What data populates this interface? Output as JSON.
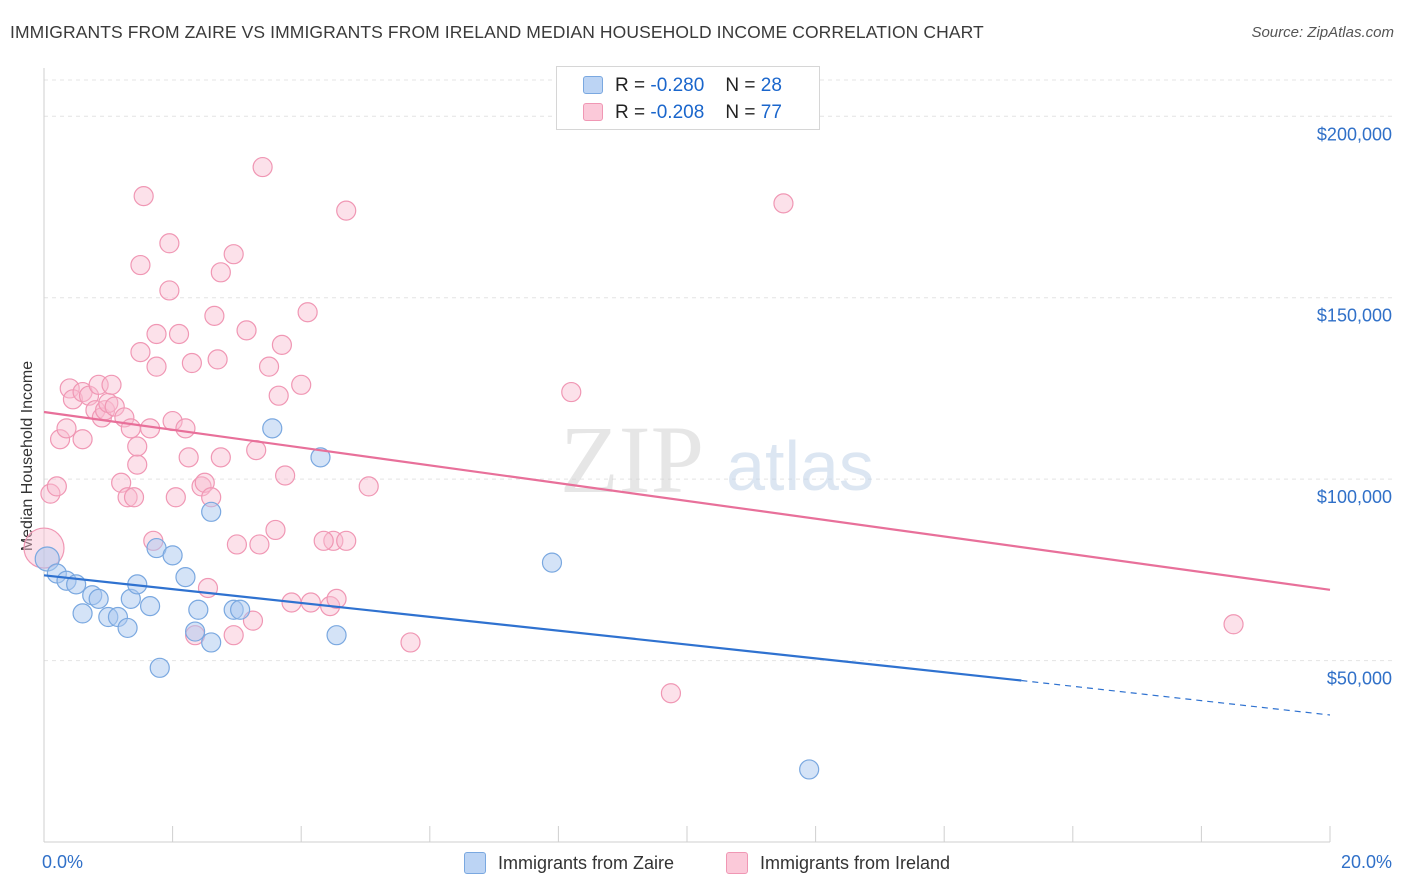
{
  "header": {
    "title": "IMMIGRANTS FROM ZAIRE VS IMMIGRANTS FROM IRELAND MEDIAN HOUSEHOLD INCOME CORRELATION CHART",
    "source": "Source: ZipAtlas.com"
  },
  "watermark": {
    "zip": "ZIP",
    "atlas": "atlas"
  },
  "legend": {
    "zaire": {
      "r_label": "R =",
      "r_value": "-0.280",
      "n_label": "N =",
      "n_value": "28"
    },
    "ireland": {
      "r_label": "R =",
      "r_value": "-0.208",
      "n_label": "N =",
      "n_value": "77"
    }
  },
  "colors": {
    "zaire_fill": "#a9c8f0",
    "zaire_stroke": "#7aa8e0",
    "zaire_line": "#2f72d0",
    "ireland_fill": "#f8bcd0",
    "ireland_stroke": "#f097b4",
    "ireland_line": "#e8709a",
    "tick_label": "#3070c8",
    "grid": "#e4e4e4"
  },
  "chart_data": {
    "type": "scatter",
    "title": "IMMIGRANTS FROM ZAIRE VS IMMIGRANTS FROM IRELAND MEDIAN HOUSEHOLD INCOME CORRELATION CHART",
    "xlabel": "",
    "ylabel": "Median Household Income",
    "xlim": [
      0,
      20
    ],
    "ylim": [
      0,
      210000
    ],
    "x_tick_labels": [
      "0.0%",
      "20.0%"
    ],
    "y_ticks": [
      50000,
      100000,
      150000,
      200000
    ],
    "y_tick_labels": [
      "$50,000",
      "$100,000",
      "$150,000",
      "$200,000"
    ],
    "grid": true,
    "legend_position": "top-center and bottom",
    "series": [
      {
        "name": "Immigrants from Zaire",
        "points": [
          [
            0.05,
            78000
          ],
          [
            0.2,
            74000
          ],
          [
            0.35,
            72000
          ],
          [
            0.5,
            71000
          ],
          [
            0.6,
            63000
          ],
          [
            0.75,
            68000
          ],
          [
            0.85,
            67000
          ],
          [
            1.0,
            62000
          ],
          [
            1.15,
            62000
          ],
          [
            1.3,
            59000
          ],
          [
            1.35,
            67000
          ],
          [
            1.45,
            71000
          ],
          [
            1.65,
            65000
          ],
          [
            1.75,
            81000
          ],
          [
            1.8,
            48000
          ],
          [
            2.0,
            79000
          ],
          [
            2.2,
            73000
          ],
          [
            2.35,
            58000
          ],
          [
            2.4,
            64000
          ],
          [
            2.6,
            91000
          ],
          [
            2.6,
            55000
          ],
          [
            2.95,
            64000
          ],
          [
            3.05,
            64000
          ],
          [
            3.55,
            114000
          ],
          [
            4.3,
            106000
          ],
          [
            4.55,
            57000
          ],
          [
            7.9,
            77000
          ],
          [
            11.9,
            20000
          ]
        ],
        "trend": {
          "x": [
            0,
            15.2
          ],
          "y": [
            73500,
            44500
          ]
        },
        "trend_extension": {
          "x": [
            15.2,
            20.0
          ],
          "y": [
            44500,
            35000
          ]
        }
      },
      {
        "name": "Immigrants from Ireland",
        "points": [
          [
            0.0,
            81000
          ],
          [
            0.1,
            96000
          ],
          [
            0.2,
            98000
          ],
          [
            0.25,
            111000
          ],
          [
            0.35,
            114000
          ],
          [
            0.4,
            125000
          ],
          [
            0.45,
            122000
          ],
          [
            0.6,
            124000
          ],
          [
            0.6,
            111000
          ],
          [
            0.7,
            123000
          ],
          [
            0.8,
            119000
          ],
          [
            0.85,
            126000
          ],
          [
            0.9,
            117000
          ],
          [
            0.95,
            119000
          ],
          [
            1.0,
            121000
          ],
          [
            1.05,
            126000
          ],
          [
            1.1,
            120000
          ],
          [
            1.2,
            99000
          ],
          [
            1.25,
            117000
          ],
          [
            1.3,
            95000
          ],
          [
            1.35,
            114000
          ],
          [
            1.4,
            95000
          ],
          [
            1.45,
            104000
          ],
          [
            1.45,
            109000
          ],
          [
            1.5,
            159000
          ],
          [
            1.5,
            135000
          ],
          [
            1.55,
            178000
          ],
          [
            1.65,
            114000
          ],
          [
            1.7,
            83000
          ],
          [
            1.75,
            140000
          ],
          [
            1.75,
            131000
          ],
          [
            1.95,
            165000
          ],
          [
            1.95,
            152000
          ],
          [
            2.0,
            116000
          ],
          [
            2.05,
            95000
          ],
          [
            2.1,
            140000
          ],
          [
            2.2,
            114000
          ],
          [
            2.25,
            106000
          ],
          [
            2.3,
            132000
          ],
          [
            2.35,
            57000
          ],
          [
            2.45,
            98000
          ],
          [
            2.5,
            99000
          ],
          [
            2.55,
            70000
          ],
          [
            2.6,
            95000
          ],
          [
            2.65,
            145000
          ],
          [
            2.7,
            133000
          ],
          [
            2.75,
            106000
          ],
          [
            2.75,
            157000
          ],
          [
            2.95,
            162000
          ],
          [
            2.95,
            57000
          ],
          [
            3.0,
            82000
          ],
          [
            3.15,
            141000
          ],
          [
            3.25,
            61000
          ],
          [
            3.3,
            108000
          ],
          [
            3.35,
            82000
          ],
          [
            3.4,
            186000
          ],
          [
            3.5,
            131000
          ],
          [
            3.6,
            86000
          ],
          [
            3.65,
            123000
          ],
          [
            3.7,
            137000
          ],
          [
            3.75,
            101000
          ],
          [
            3.85,
            66000
          ],
          [
            4.0,
            126000
          ],
          [
            4.1,
            146000
          ],
          [
            4.15,
            66000
          ],
          [
            4.45,
            65000
          ],
          [
            4.5,
            83000
          ],
          [
            4.55,
            67000
          ],
          [
            4.7,
            83000
          ],
          [
            4.7,
            174000
          ],
          [
            5.05,
            98000
          ],
          [
            5.7,
            55000
          ],
          [
            8.2,
            124000
          ],
          [
            9.75,
            41000
          ],
          [
            11.5,
            176000
          ],
          [
            18.5,
            60000
          ],
          [
            4.35,
            83000
          ]
        ],
        "trend": {
          "x": [
            0,
            20.0
          ],
          "y": [
            118500,
            69500
          ]
        }
      }
    ]
  },
  "bottom_legend": {
    "zaire_label": "Immigrants from Zaire",
    "ireland_label": "Immigrants from Ireland"
  }
}
